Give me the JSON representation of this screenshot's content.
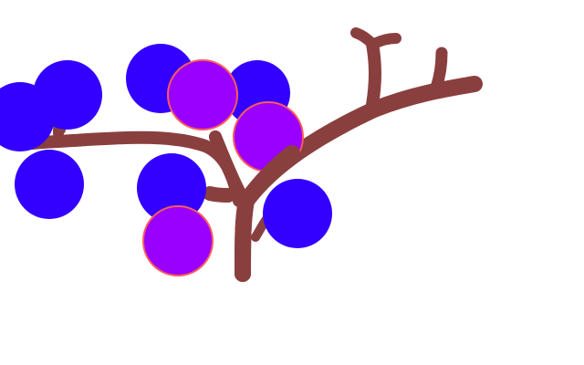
{
  "drawing": {
    "subject": "berry-branch",
    "colors": {
      "background": "#ffffff",
      "branch": "#8a3f3f",
      "blue_berry": "#3300ff",
      "purple_berry": "#9900ff",
      "berry_edge": "#ff5a5a"
    },
    "berries": [
      {
        "color": "blue"
      },
      {
        "color": "blue"
      },
      {
        "color": "blue"
      },
      {
        "color": "blue"
      },
      {
        "color": "blue"
      },
      {
        "color": "blue"
      },
      {
        "color": "purple"
      },
      {
        "color": "purple"
      },
      {
        "color": "purple"
      },
      {
        "color": "blue"
      }
    ]
  }
}
